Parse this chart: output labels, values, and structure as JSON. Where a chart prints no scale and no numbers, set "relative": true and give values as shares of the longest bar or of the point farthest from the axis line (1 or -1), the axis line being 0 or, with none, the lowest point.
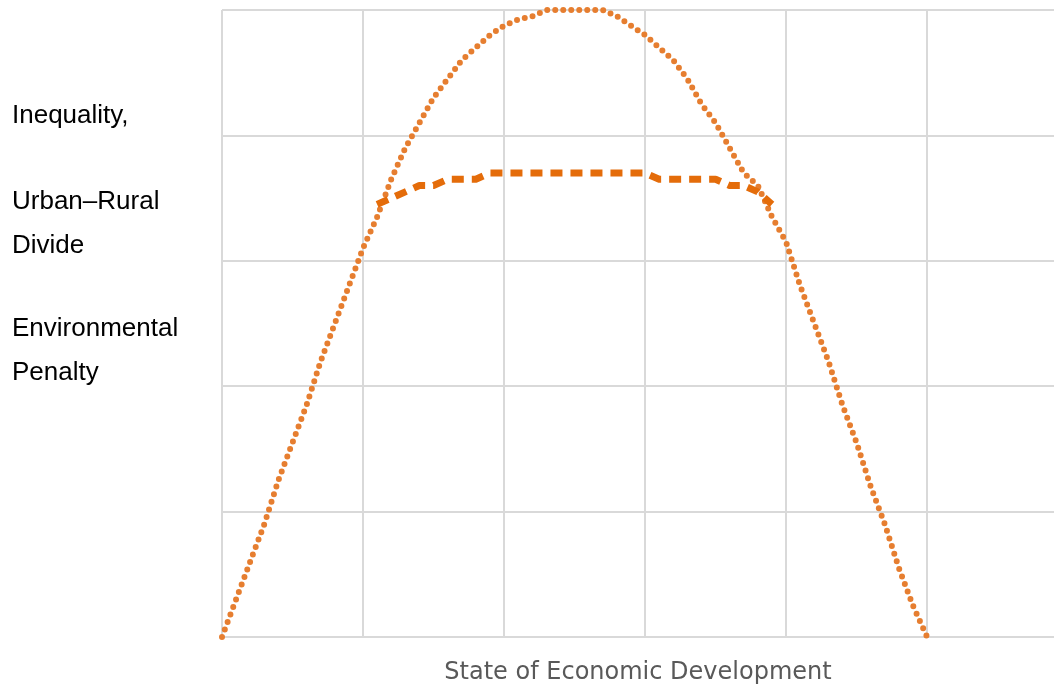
{
  "chart_data": {
    "type": "line",
    "relative": true,
    "xlabel": "State of Economic Development",
    "annotations": [
      "Inequality,",
      "Urban–Rural Divide",
      "Environmental Penalty"
    ],
    "grid": true,
    "marker": "none",
    "categories": [
      null,
      null,
      null,
      null,
      null,
      null,
      null,
      null,
      null,
      null,
      null,
      null,
      null,
      null,
      null,
      null,
      null,
      null,
      null,
      null,
      null,
      null,
      null,
      null,
      null,
      null,
      null,
      null,
      null,
      null,
      null,
      null,
      null,
      null,
      null,
      null,
      null,
      null,
      null,
      null,
      null,
      null,
      null,
      null,
      null,
      null,
      null,
      null,
      null,
      null,
      null,
      null,
      null,
      null,
      null,
      null,
      null,
      null,
      null,
      null
    ],
    "series": [
      {
        "color": "#e67e30",
        "line_style": "dotted",
        "values": [
          0,
          0.06,
          0.12,
          0.18,
          0.25,
          0.31,
          0.37,
          0.44,
          0.5,
          0.56,
          0.62,
          0.67,
          0.73,
          0.78,
          0.82,
          0.86,
          0.89,
          0.92,
          0.94,
          0.96,
          0.975,
          0.985,
          0.99,
          1,
          1,
          1,
          1,
          1,
          0.99,
          0.975,
          0.96,
          0.94,
          0.92,
          0.89,
          0.85,
          0.82,
          0.78,
          0.74,
          0.72,
          0.67,
          0.63,
          0.56,
          0.5,
          0.44,
          0.37,
          0.31,
          0.24,
          0.18,
          0.11,
          0.05,
          0,
          null,
          null,
          null,
          null,
          null,
          null,
          null,
          null,
          null
        ]
      },
      {
        "color": "#e46c0a",
        "line_style": "dashed",
        "values": [
          null,
          null,
          null,
          null,
          null,
          null,
          null,
          null,
          null,
          null,
          null,
          0.69,
          0.7,
          0.71,
          0.72,
          0.72,
          0.73,
          0.73,
          0.73,
          0.74,
          0.74,
          0.74,
          0.74,
          0.74,
          0.74,
          0.74,
          0.74,
          0.74,
          0.74,
          0.74,
          0.74,
          0.73,
          0.73,
          0.73,
          0.73,
          0.73,
          0.72,
          0.72,
          0.71,
          0.69,
          null,
          null,
          null,
          null,
          null,
          null,
          null,
          null,
          null,
          null,
          null,
          null,
          null,
          null,
          null,
          null,
          null,
          null,
          null,
          null
        ]
      }
    ]
  }
}
